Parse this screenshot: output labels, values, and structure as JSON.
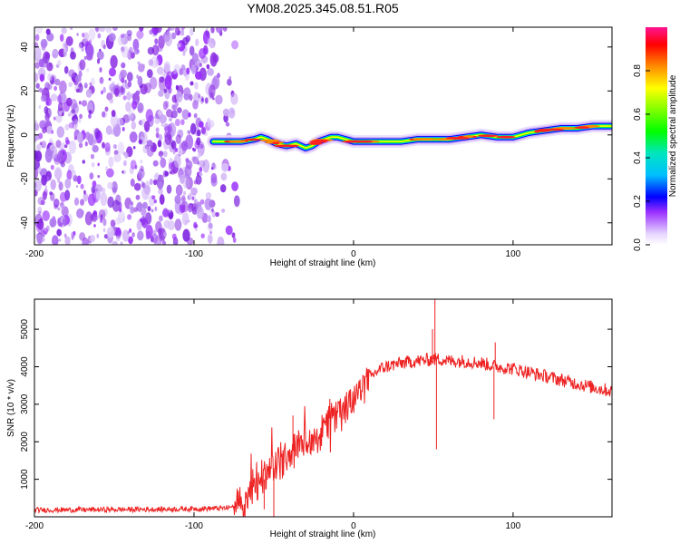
{
  "title": "YM08.2025.345.08.51.R05",
  "colors": {
    "snr_line": "#ee2222",
    "noise_purple": "#8a2be2",
    "noise_light": "#c9a6f5",
    "frame": "#000000"
  },
  "chart_data": [
    {
      "type": "heatmap",
      "name": "spectrogram",
      "xlabel": "Height of straight line (km)",
      "ylabel": "Frequency (Hz)",
      "xlim": [
        -200,
        162
      ],
      "ylim": [
        -50,
        49
      ],
      "xticks": [
        -200,
        -100,
        0,
        100
      ],
      "yticks": [
        -40,
        -20,
        0,
        20,
        40
      ],
      "xtick_labels": [
        "-200",
        "-100",
        "0",
        "100"
      ],
      "ytick_labels": [
        "-40",
        "-20",
        "0",
        "20",
        "40"
      ],
      "noise_region_x": [
        -200,
        -73
      ],
      "ridge": {
        "x": [
          -88,
          -80,
          -70,
          -62,
          -58,
          -54,
          -48,
          -42,
          -36,
          -30,
          -26,
          -22,
          -18,
          -14,
          -10,
          -5,
          0,
          10,
          20,
          30,
          40,
          50,
          60,
          70,
          80,
          90,
          100,
          110,
          120,
          130,
          140,
          150,
          162
        ],
        "freq": [
          -3,
          -3,
          -3,
          -2,
          -1,
          -2,
          -4,
          -5,
          -4,
          -6,
          -5,
          -3,
          -2,
          -1,
          -1,
          -2,
          -3,
          -3,
          -3,
          -3,
          -2,
          -2,
          -2,
          -1,
          0,
          -1,
          -1,
          1,
          2,
          3,
          3,
          4,
          4
        ]
      },
      "colorbar": {
        "label": "Normalized spectral amplitude",
        "range": [
          0,
          1
        ],
        "ticks": [
          0.0,
          0.2,
          0.4,
          0.6,
          0.8
        ],
        "tick_labels": [
          "0.0",
          "0.2",
          "0.4",
          "0.6",
          "0.8"
        ]
      }
    },
    {
      "type": "line",
      "name": "snr",
      "xlabel": "Height of straight line (km)",
      "ylabel": "SNR (10 * v/v)",
      "xlim": [
        -200,
        162
      ],
      "ylim": [
        0,
        5800
      ],
      "xticks": [
        -200,
        -100,
        0,
        100
      ],
      "yticks": [
        1000,
        2000,
        3000,
        4000,
        5000
      ],
      "xtick_labels": [
        "-200",
        "-100",
        "0",
        "100"
      ],
      "ytick_labels": [
        "1000",
        "2000",
        "3000",
        "4000",
        "5000"
      ],
      "envelope": {
        "x": [
          -200,
          -120,
          -80,
          -72,
          -65,
          -58,
          -50,
          -40,
          -30,
          -20,
          -10,
          0,
          8,
          15,
          20,
          30,
          40,
          50,
          55,
          60,
          70,
          80,
          90,
          100,
          110,
          120,
          130,
          140,
          150,
          162
        ],
        "y": [
          180,
          200,
          230,
          300,
          500,
          900,
          1300,
          1700,
          2000,
          2300,
          2700,
          3100,
          3600,
          3900,
          4000,
          4100,
          4150,
          4200,
          4200,
          4150,
          4150,
          4100,
          4000,
          3950,
          3850,
          3750,
          3650,
          3550,
          3450,
          3350
        ]
      },
      "spikes": [
        {
          "x": 51,
          "y": 5800
        },
        {
          "x": 52,
          "y": 1800
        },
        {
          "x": 49.5,
          "y": 5000
        },
        {
          "x": 88,
          "y": 2600
        },
        {
          "x": 88.8,
          "y": 4650
        },
        {
          "x": -38,
          "y": 2700
        },
        {
          "x": -58,
          "y": 1000
        },
        {
          "x": -50,
          "y": 0
        },
        {
          "x": -56,
          "y": 200
        }
      ]
    }
  ]
}
